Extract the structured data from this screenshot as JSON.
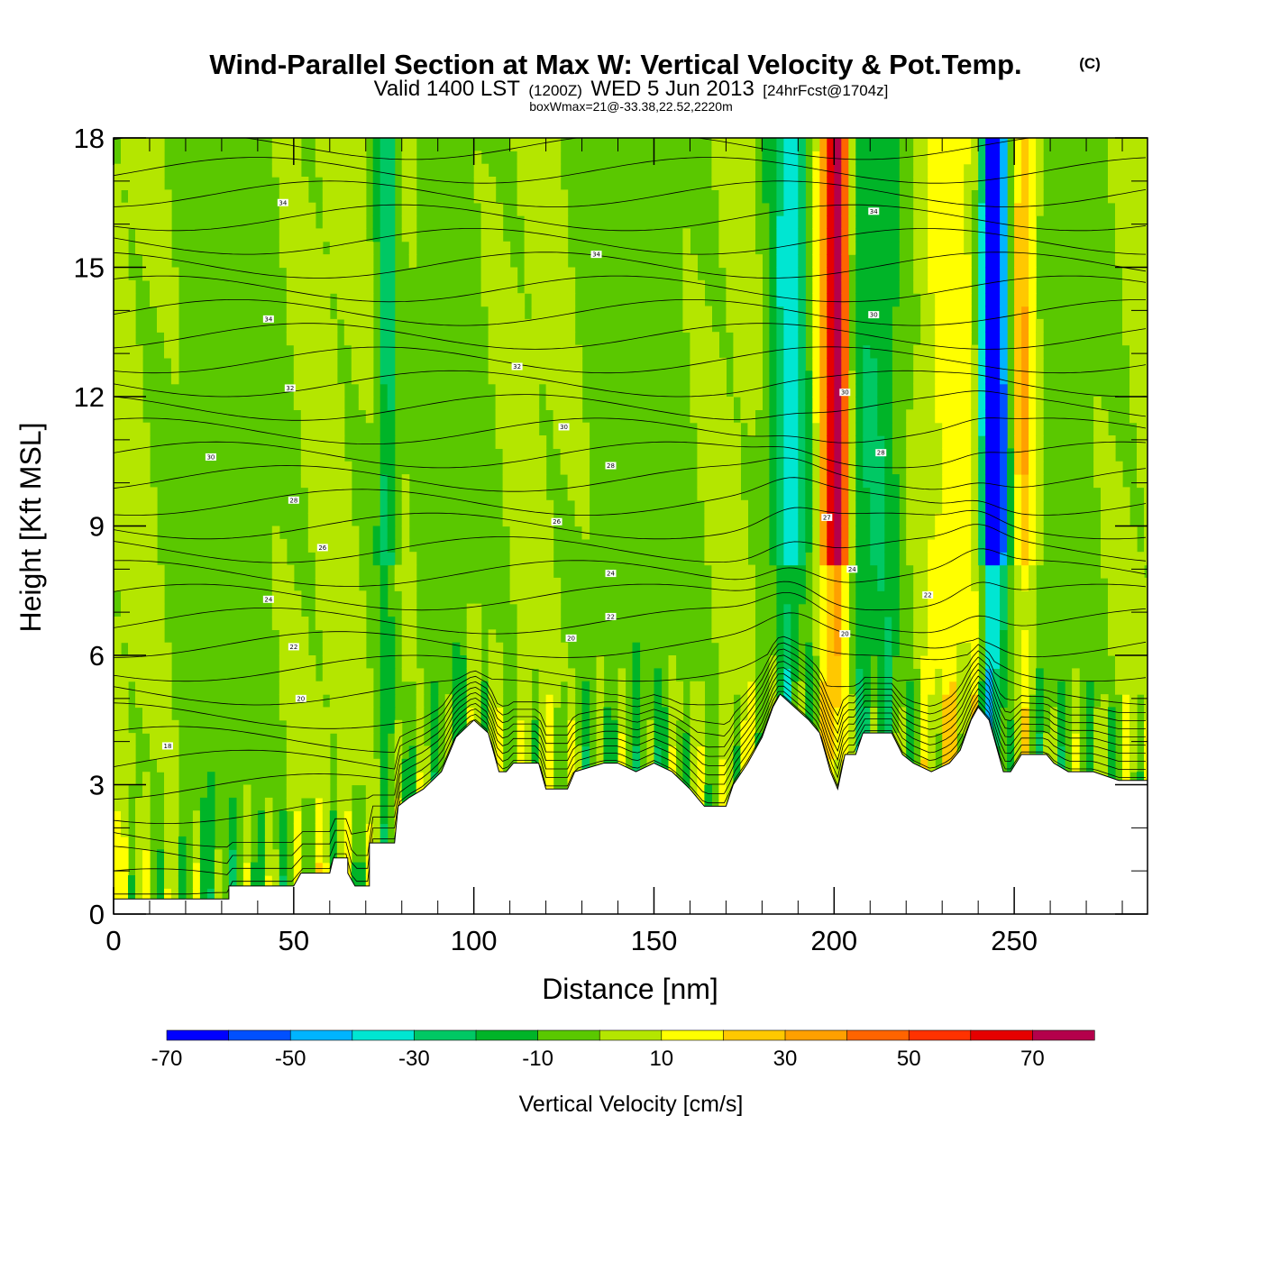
{
  "title": {
    "main": "Wind-Parallel Section at Max W: Vertical Velocity & Pot.Temp.",
    "copyright": "(C)",
    "valid_prefix": "Valid 1400 LST",
    "valid_utc": "(1200Z)",
    "valid_date": "WED 5 Jun 2013",
    "forecast": "[24hrFcst@1704z]",
    "box_info": "boxWmax=21@-33.38,22.52,2220m"
  },
  "chart_data": {
    "type": "heatmap",
    "xlabel": "Distance [nm]",
    "ylabel": "Height [Kft MSL]",
    "xlim": [
      0,
      287
    ],
    "ylim": [
      0,
      18
    ],
    "x_ticks": [
      0,
      50,
      100,
      150,
      200,
      250
    ],
    "y_ticks": [
      0,
      3,
      6,
      9,
      12,
      15,
      18
    ],
    "colorbar": {
      "title": "Vertical Velocity [cm/s]",
      "levels": [
        -70,
        -60,
        -50,
        -40,
        -30,
        -20,
        -10,
        0,
        10,
        20,
        30,
        40,
        50,
        60,
        70,
        80
      ],
      "labels": [
        -70,
        -50,
        -30,
        -10,
        10,
        30,
        50,
        70
      ],
      "colors": [
        "#0000ff",
        "#0050ff",
        "#00b4ff",
        "#00e6d2",
        "#00c864",
        "#00b428",
        "#5ac800",
        "#b4e600",
        "#ffff00",
        "#ffc800",
        "#ffa000",
        "#ff6400",
        "#ff3200",
        "#e60000",
        "#b4004b"
      ]
    },
    "field_features": [
      {
        "x": 79,
        "w": 6,
        "value": 8
      },
      {
        "x": 76,
        "w": 3,
        "value": -28
      },
      {
        "x": 188,
        "w": 6,
        "value": -35
      },
      {
        "x": 201,
        "w": 3,
        "value": 65
      },
      {
        "x": 198,
        "w": 5,
        "value": 35
      },
      {
        "x": 212,
        "w": 8,
        "value": -15
      },
      {
        "x": 244,
        "w": 3,
        "value": -65
      },
      {
        "x": 246,
        "w": 6,
        "value": -40
      },
      {
        "x": 252,
        "w": 4,
        "value": 45
      },
      {
        "x": 237,
        "w": 12,
        "value": 15
      }
    ],
    "terrain": [
      [
        0,
        0.35
      ],
      [
        32,
        0.35
      ],
      [
        32,
        0.65
      ],
      [
        50,
        0.65
      ],
      [
        52,
        0.95
      ],
      [
        60,
        0.95
      ],
      [
        61,
        1.3
      ],
      [
        65,
        1.3
      ],
      [
        65,
        0.95
      ],
      [
        67,
        0.65
      ],
      [
        71,
        0.65
      ],
      [
        71,
        1.65
      ],
      [
        78,
        1.65
      ],
      [
        79,
        2.5
      ],
      [
        82,
        2.7
      ],
      [
        86,
        2.9
      ],
      [
        91,
        3.3
      ],
      [
        93,
        3.7
      ],
      [
        95,
        4.1
      ],
      [
        100,
        4.5
      ],
      [
        104,
        4.2
      ],
      [
        107,
        3.3
      ],
      [
        109,
        3.3
      ],
      [
        111,
        3.5
      ],
      [
        118,
        3.5
      ],
      [
        120,
        2.9
      ],
      [
        126,
        2.9
      ],
      [
        128,
        3.3
      ],
      [
        136,
        3.5
      ],
      [
        140,
        3.5
      ],
      [
        145,
        3.3
      ],
      [
        150,
        3.5
      ],
      [
        155,
        3.3
      ],
      [
        160,
        2.9
      ],
      [
        164,
        2.5
      ],
      [
        170,
        2.5
      ],
      [
        172,
        3.0
      ],
      [
        176,
        3.5
      ],
      [
        180,
        4.1
      ],
      [
        183,
        4.8
      ],
      [
        185,
        5.1
      ],
      [
        189,
        4.8
      ],
      [
        193,
        4.5
      ],
      [
        196,
        4.2
      ],
      [
        199,
        3.3
      ],
      [
        201,
        2.9
      ],
      [
        203,
        3.7
      ],
      [
        206,
        3.7
      ],
      [
        208,
        4.2
      ],
      [
        216,
        4.2
      ],
      [
        219,
        3.7
      ],
      [
        222,
        3.5
      ],
      [
        227,
        3.3
      ],
      [
        232,
        3.5
      ],
      [
        235,
        3.8
      ],
      [
        238,
        4.5
      ],
      [
        240,
        4.8
      ],
      [
        243,
        4.5
      ],
      [
        247,
        3.3
      ],
      [
        249,
        3.3
      ],
      [
        252,
        3.7
      ],
      [
        259,
        3.7
      ],
      [
        261,
        3.5
      ],
      [
        265,
        3.3
      ],
      [
        272,
        3.3
      ],
      [
        279,
        3.1
      ],
      [
        287,
        3.1
      ]
    ],
    "contour_labels": [
      {
        "x": 47,
        "y": 16.5,
        "text": "34"
      },
      {
        "x": 134,
        "y": 15.3,
        "text": "34"
      },
      {
        "x": 211,
        "y": 16.3,
        "text": "34"
      },
      {
        "x": 43,
        "y": 13.8,
        "text": "34"
      },
      {
        "x": 112,
        "y": 12.7,
        "text": "32"
      },
      {
        "x": 211,
        "y": 13.9,
        "text": "30"
      },
      {
        "x": 49,
        "y": 12.2,
        "text": "32"
      },
      {
        "x": 125,
        "y": 11.3,
        "text": "30"
      },
      {
        "x": 203,
        "y": 12.1,
        "text": "30"
      },
      {
        "x": 27,
        "y": 10.6,
        "text": "30"
      },
      {
        "x": 138,
        "y": 10.4,
        "text": "28"
      },
      {
        "x": 213,
        "y": 10.7,
        "text": "28"
      },
      {
        "x": 50,
        "y": 9.6,
        "text": "28"
      },
      {
        "x": 123,
        "y": 9.1,
        "text": "26"
      },
      {
        "x": 198,
        "y": 9.2,
        "text": "27"
      },
      {
        "x": 58,
        "y": 8.5,
        "text": "26"
      },
      {
        "x": 138,
        "y": 7.9,
        "text": "24"
      },
      {
        "x": 205,
        "y": 8.0,
        "text": "24"
      },
      {
        "x": 43,
        "y": 7.3,
        "text": "24"
      },
      {
        "x": 226,
        "y": 7.4,
        "text": "22"
      },
      {
        "x": 138,
        "y": 6.9,
        "text": "22"
      },
      {
        "x": 127,
        "y": 6.4,
        "text": "20"
      },
      {
        "x": 203,
        "y": 6.5,
        "text": "20"
      },
      {
        "x": 50,
        "y": 6.2,
        "text": "22"
      },
      {
        "x": 52,
        "y": 5.0,
        "text": "20"
      },
      {
        "x": 15,
        "y": 3.9,
        "text": "18"
      }
    ]
  }
}
